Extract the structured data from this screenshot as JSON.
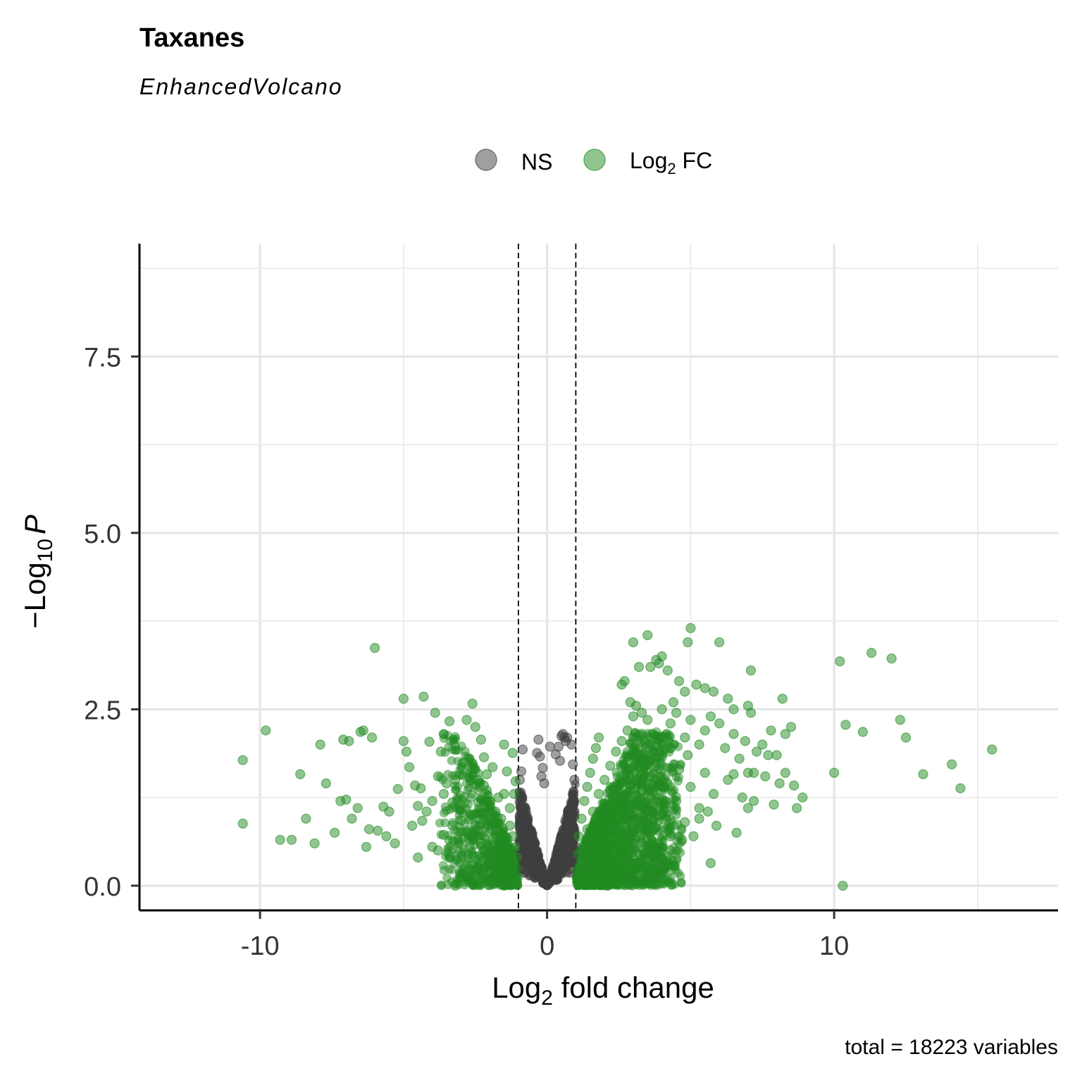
{
  "chart_data": {
    "type": "scatter",
    "title": "Taxanes",
    "subtitle": "EnhancedVolcano",
    "xlabel": {
      "base": "Log",
      "sub": "2",
      "rest": " fold change"
    },
    "ylabel": {
      "pre": "−Log",
      "sub": "10",
      "italic": "P"
    },
    "caption": "total = 18223 variables",
    "xlim": [
      -14.2,
      17.8
    ],
    "ylim": [
      -0.35,
      9.1
    ],
    "x_ticks": [
      -10,
      0,
      10
    ],
    "x_tick_labels": [
      "-10",
      "0",
      "10"
    ],
    "y_ticks": [
      0,
      2.5,
      5,
      7.5
    ],
    "y_tick_labels": [
      "0.0",
      "2.5",
      "5.0",
      "7.5"
    ],
    "fc_cutoff": [
      -1,
      1
    ],
    "grid": true,
    "legend_position": "top",
    "legend": [
      {
        "key": "NS",
        "label": "NS",
        "color": "#404040"
      },
      {
        "key": "FC",
        "label_base": "Log",
        "label_sub": "2",
        "label_rest": " FC",
        "color": "#228B22"
      }
    ],
    "series": [
      {
        "name": "NS",
        "color": "#404040",
        "points": [
          [
            -0.3,
            2.07
          ],
          [
            0.5,
            2.12
          ],
          [
            0.55,
            2.15
          ],
          [
            0.6,
            2.1
          ],
          [
            0.65,
            2.05
          ],
          [
            0.7,
            2.1
          ],
          [
            0.85,
            2.0
          ],
          [
            0.1,
            1.97
          ],
          [
            -0.85,
            1.93
          ],
          [
            -0.35,
            1.88
          ],
          [
            -0.25,
            1.83
          ],
          [
            0.4,
            1.97
          ],
          [
            0.3,
            1.86
          ],
          [
            -0.15,
            1.67
          ],
          [
            0.45,
            1.77
          ],
          [
            0.9,
            1.72
          ],
          [
            -0.2,
            1.55
          ],
          [
            -0.1,
            1.45
          ],
          [
            0.95,
            1.5
          ],
          [
            -0.9,
            1.62
          ],
          [
            -0.95,
            1.5
          ]
        ]
      },
      {
        "name": "Log2 FC",
        "color": "#228B22",
        "points": [
          [
            -10.6,
            1.78
          ],
          [
            -10.6,
            0.88
          ],
          [
            -9.8,
            2.2
          ],
          [
            -9.3,
            0.65
          ],
          [
            -8.9,
            0.65
          ],
          [
            -8.6,
            1.58
          ],
          [
            -8.4,
            0.95
          ],
          [
            -8.1,
            0.6
          ],
          [
            -7.9,
            2.0
          ],
          [
            -7.7,
            1.45
          ],
          [
            -7.2,
            1.2
          ],
          [
            -7.0,
            1.22
          ],
          [
            -6.8,
            0.95
          ],
          [
            -6.6,
            1.1
          ],
          [
            -7.1,
            2.07
          ],
          [
            -6.9,
            2.05
          ],
          [
            -6.5,
            2.18
          ],
          [
            -6.4,
            2.2
          ],
          [
            -6.1,
            2.1
          ],
          [
            -6.2,
            0.8
          ],
          [
            -6.0,
            3.37
          ],
          [
            -5.7,
            1.12
          ],
          [
            -5.6,
            0.7
          ],
          [
            -5.2,
            1.37
          ],
          [
            -5.3,
            0.6
          ],
          [
            -5.0,
            2.65
          ],
          [
            -5.0,
            2.05
          ],
          [
            -4.9,
            1.9
          ],
          [
            -4.8,
            1.68
          ],
          [
            -4.6,
            1.42
          ],
          [
            -4.5,
            1.13
          ],
          [
            -4.4,
            1.38
          ],
          [
            -4.2,
            1.05
          ],
          [
            -4.1,
            2.04
          ],
          [
            -4.35,
            0.92
          ],
          [
            -3.8,
            1.55
          ],
          [
            -3.6,
            1.3
          ],
          [
            -3.5,
            1.45
          ],
          [
            -3.8,
            0.5
          ],
          [
            -4.5,
            0.4
          ],
          [
            -3.3,
            0.85
          ],
          [
            -3.0,
            0.92
          ],
          [
            -4.3,
            2.68
          ],
          [
            -3.9,
            2.45
          ],
          [
            -3.7,
            1.9
          ],
          [
            -3.6,
            2.15
          ],
          [
            -3.2,
            1.5
          ],
          [
            -3.0,
            1.08
          ],
          [
            -2.9,
            1.75
          ],
          [
            -2.6,
            2.58
          ],
          [
            -2.8,
            2.35
          ],
          [
            -2.5,
            2.25
          ],
          [
            -2.3,
            2.07
          ],
          [
            -2.4,
            1.5
          ],
          [
            -2.1,
            1.58
          ],
          [
            -2.2,
            1.82
          ],
          [
            -1.9,
            1.68
          ],
          [
            -1.5,
            2.0
          ],
          [
            -1.4,
            1.62
          ],
          [
            -1.5,
            1.3
          ],
          [
            -1.2,
            1.88
          ],
          [
            -1.1,
            1.48
          ],
          [
            -1.15,
            1.3
          ],
          [
            -2.0,
            1.2
          ],
          [
            -1.8,
            1.05
          ],
          [
            -1.6,
            0.95
          ],
          [
            -1.3,
            0.85
          ],
          [
            -1.2,
            0.7
          ],
          [
            -1.1,
            0.55
          ],
          [
            -1.05,
            0.4
          ],
          [
            -1.08,
            0.25
          ],
          [
            -1.03,
            0.12
          ],
          [
            -2.5,
            0.85
          ],
          [
            -2.3,
            0.6
          ],
          [
            -2.0,
            0.75
          ],
          [
            -1.9,
            0.45
          ],
          [
            -1.7,
            0.6
          ],
          [
            -1.6,
            0.3
          ],
          [
            -1.4,
            0.5
          ],
          [
            -1.3,
            0.2
          ],
          [
            -1.2,
            0.05
          ],
          [
            -2.7,
            0.55
          ],
          [
            -2.9,
            0.3
          ],
          [
            -3.1,
            0.65
          ],
          [
            -3.2,
            0.0
          ],
          [
            -2.7,
            0.1
          ],
          [
            -2.2,
            0.25
          ],
          [
            -1.8,
            0.15
          ],
          [
            -1.5,
            0.0
          ],
          [
            -3.4,
            0.42
          ],
          [
            -3.6,
            0.72
          ],
          [
            -2.6,
            1.0
          ],
          [
            -2.4,
            1.18
          ],
          [
            -2.1,
            1.35
          ],
          [
            -1.7,
            1.25
          ],
          [
            -1.3,
            1.1
          ],
          [
            -2.8,
            0.75
          ],
          [
            -3.3,
            1.18
          ],
          [
            -4.0,
            0.55
          ],
          [
            -4.7,
            0.85
          ],
          [
            -5.5,
            1.05
          ],
          [
            -6.3,
            0.55
          ],
          [
            -7.4,
            0.75
          ],
          [
            -5.9,
            0.78
          ],
          [
            -4.0,
            1.2
          ],
          [
            -3.4,
            2.33
          ],
          [
            -2.2,
            1.42
          ],
          [
            -1.9,
            0.9
          ],
          [
            1.05,
            0.2
          ],
          [
            1.08,
            0.45
          ],
          [
            1.1,
            0.7
          ],
          [
            1.2,
            0.95
          ],
          [
            1.3,
            1.2
          ],
          [
            1.4,
            1.4
          ],
          [
            1.5,
            1.6
          ],
          [
            1.6,
            1.8
          ],
          [
            1.7,
            1.95
          ],
          [
            1.8,
            2.1
          ],
          [
            1.2,
            0.5
          ],
          [
            1.4,
            0.8
          ],
          [
            1.6,
            1.05
          ],
          [
            1.8,
            1.3
          ],
          [
            2.0,
            1.5
          ],
          [
            2.2,
            1.7
          ],
          [
            2.4,
            1.9
          ],
          [
            2.6,
            2.05
          ],
          [
            2.8,
            2.2
          ],
          [
            3.0,
            2.4
          ],
          [
            1.3,
            0.2
          ],
          [
            1.6,
            0.4
          ],
          [
            1.9,
            0.7
          ],
          [
            2.2,
            0.9
          ],
          [
            2.5,
            1.1
          ],
          [
            2.8,
            1.3
          ],
          [
            3.1,
            1.5
          ],
          [
            3.4,
            1.7
          ],
          [
            3.7,
            1.9
          ],
          [
            4.0,
            2.1
          ],
          [
            4.3,
            2.3
          ],
          [
            1.5,
            0.05
          ],
          [
            2.0,
            0.2
          ],
          [
            2.5,
            0.4
          ],
          [
            3.0,
            0.6
          ],
          [
            3.5,
            0.8
          ],
          [
            4.0,
            1.0
          ],
          [
            4.5,
            1.2
          ],
          [
            5.0,
            1.4
          ],
          [
            5.5,
            1.6
          ],
          [
            2.1,
            0.0
          ],
          [
            2.6,
            0.15
          ],
          [
            3.2,
            0.3
          ],
          [
            3.8,
            0.5
          ],
          [
            4.3,
            0.7
          ],
          [
            4.8,
            0.9
          ],
          [
            5.3,
            1.1
          ],
          [
            5.8,
            1.3
          ],
          [
            6.3,
            1.5
          ],
          [
            2.6,
            2.85
          ],
          [
            2.7,
            2.9
          ],
          [
            2.9,
            2.6
          ],
          [
            3.1,
            2.55
          ],
          [
            3.3,
            2.45
          ],
          [
            3.5,
            2.35
          ],
          [
            3.2,
            3.1
          ],
          [
            3.6,
            3.1
          ],
          [
            3.8,
            3.2
          ],
          [
            3.9,
            3.15
          ],
          [
            4.0,
            3.25
          ],
          [
            4.2,
            3.05
          ],
          [
            3.5,
            3.55
          ],
          [
            3.0,
            3.45
          ],
          [
            5.0,
            3.65
          ],
          [
            4.9,
            3.45
          ],
          [
            6.0,
            3.45
          ],
          [
            7.1,
            3.05
          ],
          [
            8.2,
            2.65
          ],
          [
            6.5,
            2.5
          ],
          [
            6.3,
            2.65
          ],
          [
            5.8,
            2.75
          ],
          [
            5.5,
            2.8
          ],
          [
            5.2,
            2.85
          ],
          [
            4.8,
            2.75
          ],
          [
            4.6,
            2.9
          ],
          [
            4.4,
            2.6
          ],
          [
            4.0,
            2.5
          ],
          [
            4.5,
            2.45
          ],
          [
            5.0,
            2.35
          ],
          [
            5.5,
            2.2
          ],
          [
            6.0,
            2.3
          ],
          [
            6.5,
            2.15
          ],
          [
            7.0,
            2.55
          ],
          [
            7.1,
            2.45
          ],
          [
            7.5,
            2.0
          ],
          [
            7.8,
            2.2
          ],
          [
            8.0,
            1.85
          ],
          [
            8.3,
            2.15
          ],
          [
            8.5,
            2.25
          ],
          [
            7.7,
            1.85
          ],
          [
            7.3,
            1.9
          ],
          [
            6.7,
            1.8
          ],
          [
            6.9,
            2.05
          ],
          [
            6.2,
            1.95
          ],
          [
            5.7,
            2.4
          ],
          [
            5.3,
            2.0
          ],
          [
            4.8,
            2.1
          ],
          [
            4.3,
            1.95
          ],
          [
            6.5,
            1.58
          ],
          [
            7.0,
            1.6
          ],
          [
            7.2,
            1.6
          ],
          [
            7.6,
            1.55
          ],
          [
            8.1,
            1.45
          ],
          [
            8.3,
            1.6
          ],
          [
            8.6,
            1.42
          ],
          [
            7.9,
            1.15
          ],
          [
            8.7,
            1.1
          ],
          [
            8.9,
            1.25
          ],
          [
            7.2,
            1.2
          ],
          [
            7.0,
            1.1
          ],
          [
            6.8,
            1.25
          ],
          [
            6.6,
            0.75
          ],
          [
            5.9,
            0.85
          ],
          [
            5.6,
            1.05
          ],
          [
            5.3,
            0.95
          ],
          [
            5.1,
            0.7
          ],
          [
            4.7,
            0.65
          ],
          [
            4.3,
            0.5
          ],
          [
            5.7,
            0.32
          ],
          [
            10.0,
            1.6
          ],
          [
            10.2,
            3.18
          ],
          [
            10.4,
            2.28
          ],
          [
            10.3,
            0.0
          ],
          [
            11.0,
            2.18
          ],
          [
            11.3,
            3.3
          ],
          [
            12.0,
            3.22
          ],
          [
            12.3,
            2.35
          ],
          [
            12.5,
            2.1
          ],
          [
            13.1,
            1.58
          ],
          [
            14.1,
            1.72
          ],
          [
            14.4,
            1.38
          ],
          [
            15.5,
            1.93
          ],
          [
            2.1,
            0.55
          ],
          [
            2.4,
            0.75
          ],
          [
            2.7,
            0.95
          ],
          [
            3.0,
            1.15
          ],
          [
            3.3,
            1.35
          ],
          [
            3.6,
            1.55
          ],
          [
            1.9,
            1.0
          ],
          [
            2.3,
            1.25
          ],
          [
            2.6,
            1.45
          ],
          [
            3.5,
            1.05
          ],
          [
            3.9,
            1.25
          ],
          [
            4.2,
            1.45
          ],
          [
            4.6,
            1.65
          ],
          [
            4.9,
            1.85
          ],
          [
            1.7,
            0.6
          ]
        ]
      }
    ]
  }
}
